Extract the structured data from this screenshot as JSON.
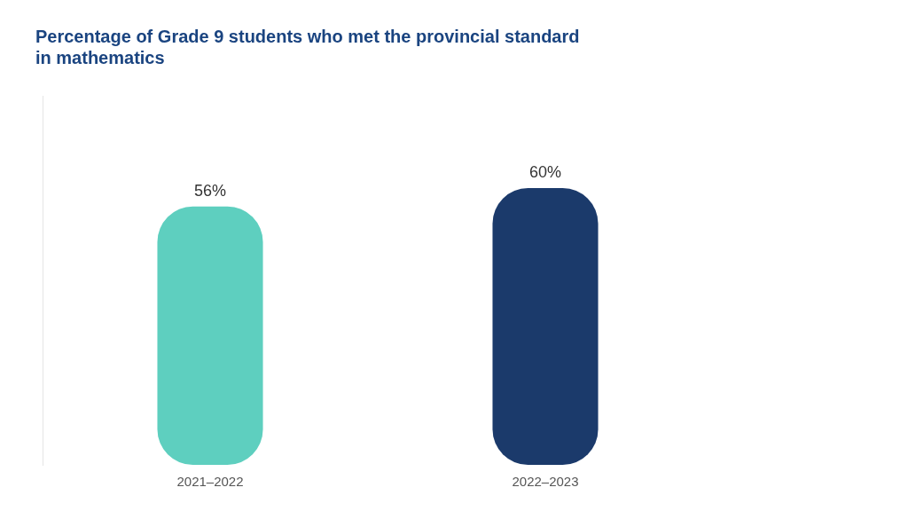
{
  "chart_data": {
    "type": "bar",
    "title": [
      "Percentage of Grade 9 students who met the provincial standard",
      "in mathematics"
    ],
    "categories": [
      "2021–2022",
      "2022–2023"
    ],
    "values": [
      56,
      60
    ],
    "value_labels": [
      "56%",
      "60%"
    ],
    "colors": [
      "#5ECFBF",
      "#1B3A6B"
    ],
    "ylim": [
      0,
      80
    ],
    "data_labels": true,
    "tick_labels": "x",
    "grid": false
  }
}
